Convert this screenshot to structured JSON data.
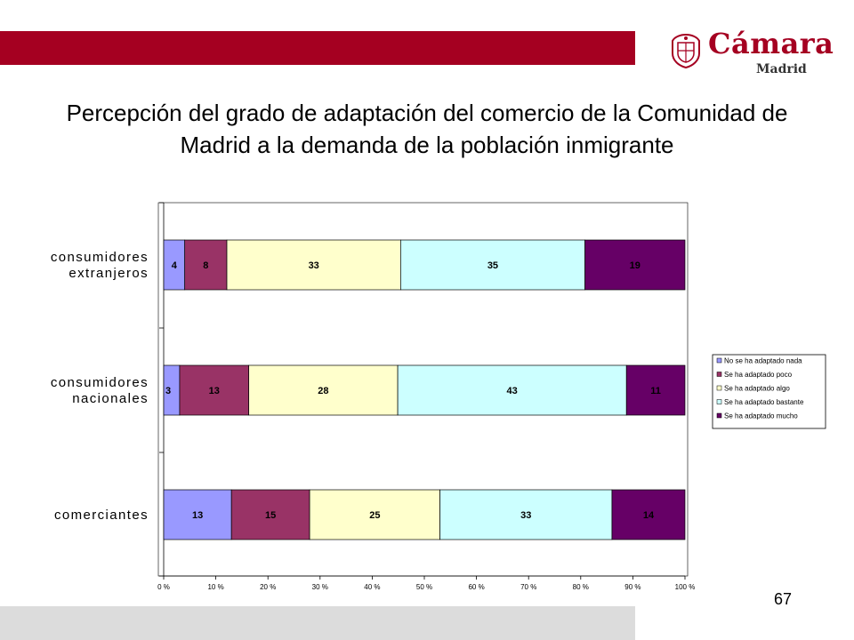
{
  "slide": {
    "title": "Percepción del grado de adaptación del comercio de la Comunidad de Madrid a la demanda de la población inmigrante",
    "page_number": "67",
    "band_color": "#A50021",
    "footer_band_color": "#DCDCDC"
  },
  "logo": {
    "word": "Cámara",
    "sub": "Madrid",
    "color": "#A50021"
  },
  "chart_data": {
    "type": "bar",
    "orientation": "horizontal",
    "stacked": "percent",
    "categories": [
      "consumidores extranjeros",
      "consumidores nacionales",
      "comerciantes"
    ],
    "category_lines": [
      [
        "consumidores",
        "extranjeros"
      ],
      [
        "consumidores",
        "nacionales"
      ],
      [
        "comerciantes"
      ]
    ],
    "series": [
      {
        "name": "No se ha adaptado nada",
        "values": [
          4,
          3,
          13
        ],
        "color": "#9999FF"
      },
      {
        "name": "Se ha adaptado poco",
        "values": [
          8,
          13,
          15
        ],
        "color": "#993366"
      },
      {
        "name": "Se ha adaptado algo",
        "values": [
          33,
          28,
          25
        ],
        "color": "#FFFFCC"
      },
      {
        "name": "Se ha adaptado bastante",
        "values": [
          35,
          43,
          33
        ],
        "color": "#CCFFFF"
      },
      {
        "name": "Se ha adaptado mucho",
        "values": [
          19,
          11,
          14
        ],
        "color": "#660066"
      }
    ],
    "x_ticks": [
      "0 %",
      "10 %",
      "20 %",
      "30 %",
      "40 %",
      "50 %",
      "60 %",
      "70 %",
      "80 %",
      "90 %",
      "100 %"
    ],
    "xlim": [
      0,
      100
    ],
    "grid": false,
    "legend_position": "right"
  }
}
